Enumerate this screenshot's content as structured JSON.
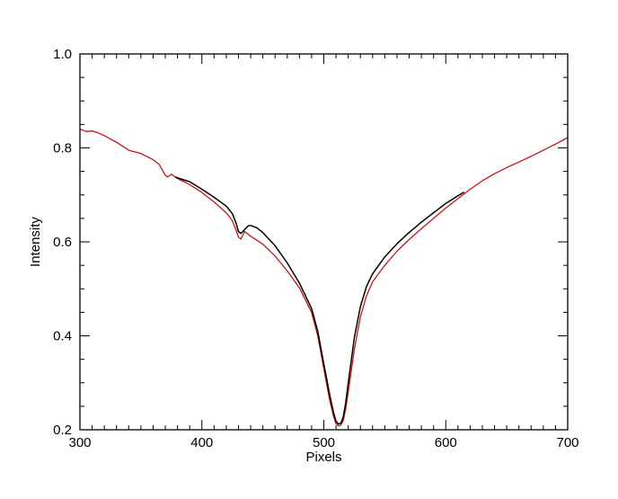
{
  "chart_data": {
    "type": "line",
    "title": "",
    "xlabel": "Pixels",
    "ylabel": "Intensity",
    "xlim": [
      300,
      700
    ],
    "ylim": [
      0.2,
      1.0
    ],
    "x_ticks": [
      300,
      400,
      500,
      600,
      700
    ],
    "x_tick_labels": [
      "300",
      "400",
      "500",
      "600",
      "700"
    ],
    "y_ticks": [
      0.2,
      0.4,
      0.6,
      0.8,
      1.0
    ],
    "y_tick_labels": [
      "0.2",
      "0.4",
      "0.6",
      "0.8",
      "1.0"
    ],
    "grid": false,
    "legend": "none",
    "series": [
      {
        "color": "#c0161b",
        "x": [
          300,
          305,
          310,
          315,
          320,
          330,
          340,
          350,
          360,
          365,
          370,
          372,
          375,
          380,
          390,
          400,
          410,
          420,
          425,
          428,
          430,
          432,
          435,
          440,
          450,
          460,
          470,
          480,
          490,
          495,
          500,
          505,
          508,
          510,
          512,
          514,
          516,
          518,
          520,
          525,
          530,
          535,
          540,
          550,
          560,
          570,
          580,
          590,
          600,
          610,
          620,
          630,
          640,
          650,
          660,
          670,
          680,
          690,
          700
        ],
        "y": [
          0.84,
          0.835,
          0.836,
          0.832,
          0.826,
          0.812,
          0.795,
          0.788,
          0.775,
          0.765,
          0.742,
          0.738,
          0.744,
          0.735,
          0.722,
          0.705,
          0.685,
          0.662,
          0.645,
          0.625,
          0.61,
          0.606,
          0.622,
          0.612,
          0.595,
          0.57,
          0.538,
          0.502,
          0.45,
          0.4,
          0.33,
          0.26,
          0.228,
          0.213,
          0.208,
          0.21,
          0.22,
          0.245,
          0.28,
          0.37,
          0.44,
          0.485,
          0.515,
          0.55,
          0.58,
          0.605,
          0.628,
          0.65,
          0.672,
          0.692,
          0.712,
          0.73,
          0.745,
          0.758,
          0.77,
          0.782,
          0.795,
          0.808,
          0.822
        ]
      },
      {
        "color": "#000000",
        "x": [
          378,
          385,
          390,
          400,
          410,
          420,
          425,
          428,
          430,
          432,
          435,
          438,
          440,
          445,
          450,
          460,
          470,
          480,
          490,
          495,
          500,
          505,
          508,
          510,
          512,
          514,
          516,
          518,
          520,
          525,
          530,
          535,
          540,
          550,
          560,
          570,
          580,
          590,
          600,
          610,
          615
        ],
        "y": [
          0.738,
          0.732,
          0.728,
          0.712,
          0.695,
          0.676,
          0.66,
          0.64,
          0.622,
          0.618,
          0.626,
          0.634,
          0.635,
          0.63,
          0.62,
          0.592,
          0.555,
          0.512,
          0.458,
          0.41,
          0.34,
          0.272,
          0.236,
          0.218,
          0.212,
          0.214,
          0.228,
          0.258,
          0.3,
          0.395,
          0.462,
          0.505,
          0.532,
          0.568,
          0.596,
          0.62,
          0.642,
          0.662,
          0.682,
          0.698,
          0.706
        ]
      }
    ]
  }
}
